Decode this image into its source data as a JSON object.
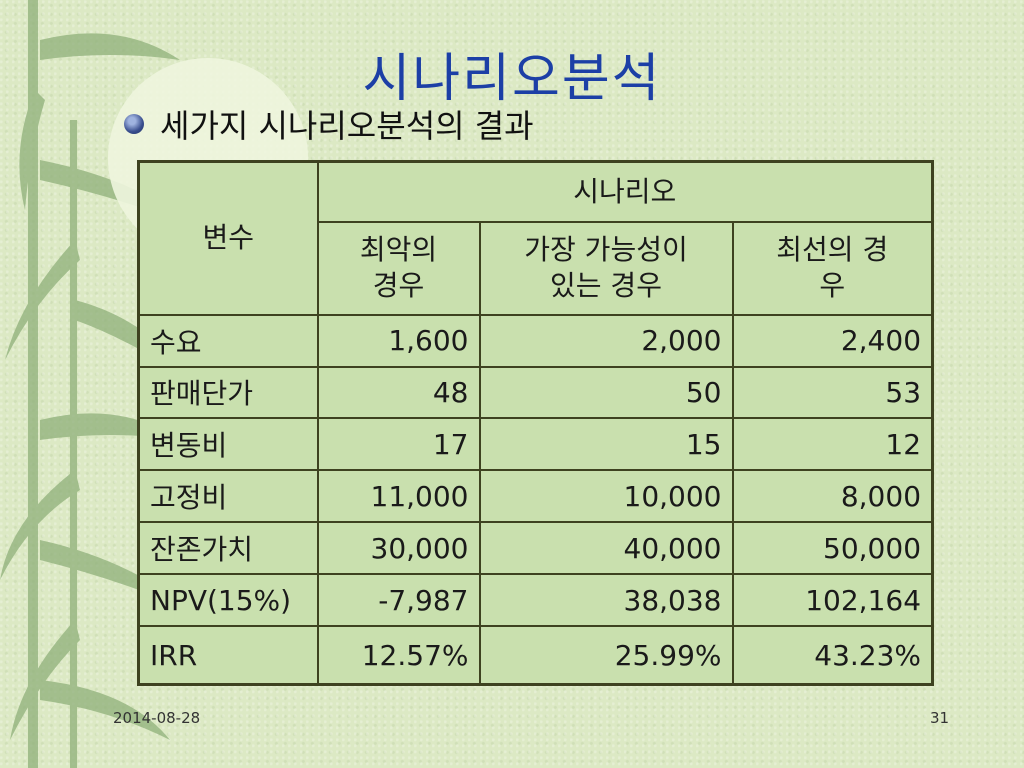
{
  "slide": {
    "title": "시나리오분석",
    "bullet": "세가지 시나리오분석의 결과",
    "date": "2014-08-28",
    "page": "31"
  },
  "table": {
    "var_header": "변수",
    "group_header": "시나리오",
    "col_worst": "최악의\n경우",
    "col_likely": "가장 가능성이\n있는 경우",
    "col_best": "최선의 경\n우",
    "rows": [
      {
        "label": "수요",
        "worst": "1,600",
        "likely": "2,000",
        "best": "2,400"
      },
      {
        "label": "판매단가",
        "worst": "48",
        "likely": "50",
        "best": "53"
      },
      {
        "label": "변동비",
        "worst": "17",
        "likely": "15",
        "best": "12"
      },
      {
        "label": "고정비",
        "worst": "11,000",
        "likely": "10,000",
        "best": "8,000"
      },
      {
        "label": "잔존가치",
        "worst": "30,000",
        "likely": "40,000",
        "best": "50,000"
      },
      {
        "label": "NPV(15%)",
        "worst": "-7,987",
        "likely": "38,038",
        "best": "102,164"
      },
      {
        "label": "IRR",
        "worst": "12.57%",
        "likely": "25.99%",
        "best": "43.23%"
      }
    ]
  }
}
